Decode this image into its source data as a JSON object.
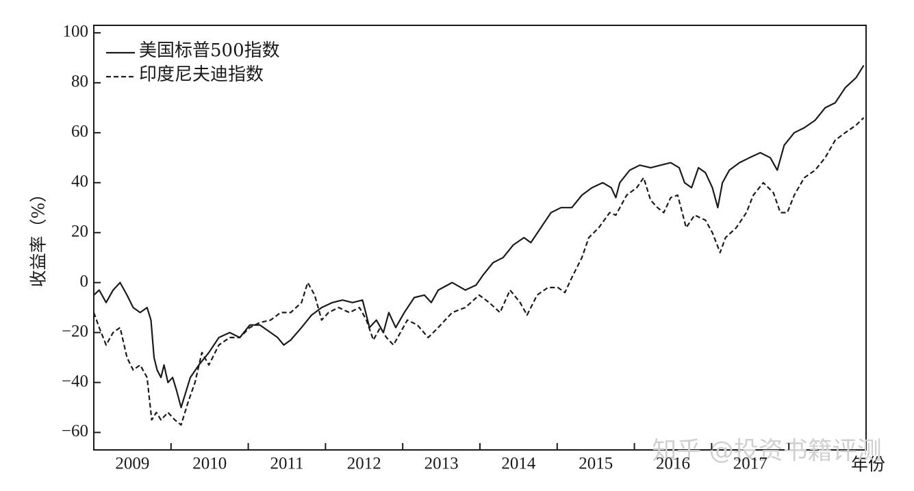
{
  "chart_data": {
    "type": "line",
    "ylabel": "收益率（%）",
    "xlabel": "年份",
    "watermark": "知乎 @投资书籍评测",
    "xlim": [
      2009,
      2019
    ],
    "ylim": [
      -67,
      103
    ],
    "yticks": [
      {
        "value": -60,
        "label": "−60"
      },
      {
        "value": -40,
        "label": "−40"
      },
      {
        "value": -20,
        "label": "−20"
      },
      0,
      20,
      40,
      60,
      80,
      100
    ],
    "xticks": [
      {
        "value": 2009.5,
        "label": "2009"
      },
      {
        "value": 2010.5,
        "label": "2010"
      },
      {
        "value": 2011.5,
        "label": "2011"
      },
      {
        "value": 2012.5,
        "label": "2012"
      },
      {
        "value": 2013.5,
        "label": "2013"
      },
      {
        "value": 2014.5,
        "label": "2014"
      },
      {
        "value": 2015.5,
        "label": "2015"
      },
      {
        "value": 2016.5,
        "label": "2016"
      },
      {
        "value": 2017.5,
        "label": "2017"
      }
    ],
    "xtick_marks": [
      2010,
      2011,
      2012,
      2013,
      2014,
      2015,
      2016,
      2017,
      2018
    ],
    "legend": "upper-left",
    "series": [
      {
        "name": "美国标普500指数",
        "color": "#1a1a1a",
        "style": "solid",
        "x": [
          2009,
          2009.07,
          2009.16,
          2009.25,
          2009.34,
          2009.43,
          2009.51,
          2009.6,
          2009.69,
          2009.74,
          2009.78,
          2009.82,
          2009.87,
          2009.91,
          2009.96,
          2010.02,
          2010.07,
          2010.13,
          2010.18,
          2010.25,
          2010.36,
          2010.49,
          2010.62,
          2010.76,
          2010.89,
          2011.02,
          2011.15,
          2011.29,
          2011.38,
          2011.46,
          2011.55,
          2011.69,
          2011.82,
          2011.95,
          2012.09,
          2012.22,
          2012.35,
          2012.48,
          2012.57,
          2012.66,
          2012.75,
          2012.82,
          2012.91,
          2013.02,
          2013.15,
          2013.28,
          2013.37,
          2013.46,
          2013.64,
          2013.81,
          2013.95,
          2014.04,
          2014.17,
          2014.3,
          2014.43,
          2014.57,
          2014.66,
          2014.79,
          2014.92,
          2015.05,
          2015.19,
          2015.32,
          2015.45,
          2015.59,
          2015.7,
          2015.76,
          2015.81,
          2015.94,
          2016.07,
          2016.21,
          2016.34,
          2016.47,
          2016.58,
          2016.65,
          2016.74,
          2016.83,
          2016.92,
          2017.01,
          2017.08,
          2017.14,
          2017.23,
          2017.36,
          2017.49,
          2017.63,
          2017.76,
          2017.85,
          2017.94,
          2018.07,
          2018.2,
          2018.34,
          2018.47,
          2018.6,
          2018.73,
          2018.87,
          2018.97
        ],
        "values": [
          -5,
          -3,
          -8,
          -3,
          0,
          -5,
          -10,
          -12,
          -10,
          -15,
          -30,
          -35,
          -38,
          -33,
          -40,
          -38,
          -43,
          -50,
          -45,
          -38,
          -33,
          -28,
          -22,
          -20,
          -22,
          -17,
          -17,
          -20,
          -22,
          -25,
          -23,
          -18,
          -13,
          -10,
          -8,
          -7,
          -8,
          -7,
          -18,
          -15,
          -20,
          -12,
          -18,
          -12,
          -6,
          -5,
          -8,
          -3,
          0,
          -3,
          -1,
          3,
          8,
          10,
          15,
          18,
          16,
          22,
          28,
          30,
          30,
          35,
          38,
          40,
          38,
          34,
          40,
          45,
          47,
          46,
          47,
          48,
          46,
          40,
          38,
          46,
          44,
          38,
          30,
          40,
          45,
          48,
          50,
          52,
          50,
          45,
          55,
          60,
          62,
          65,
          70,
          72,
          78,
          82,
          87
        ]
      },
      {
        "name": "印度尼夫迪指数",
        "color": "#1a1a1a",
        "style": "dashed",
        "x": [
          2009,
          2009.07,
          2009.16,
          2009.25,
          2009.34,
          2009.43,
          2009.51,
          2009.6,
          2009.69,
          2009.75,
          2009.81,
          2009.87,
          2009.96,
          2010.05,
          2010.13,
          2010.22,
          2010.31,
          2010.4,
          2010.49,
          2010.62,
          2010.76,
          2010.89,
          2011.02,
          2011.15,
          2011.29,
          2011.42,
          2011.55,
          2011.69,
          2011.77,
          2011.86,
          2011.95,
          2012.04,
          2012.17,
          2012.31,
          2012.44,
          2012.53,
          2012.62,
          2012.71,
          2012.79,
          2012.88,
          2012.97,
          2013.06,
          2013.19,
          2013.33,
          2013.46,
          2013.64,
          2013.81,
          2013.99,
          2014.12,
          2014.26,
          2014.39,
          2014.52,
          2014.61,
          2014.74,
          2014.88,
          2015.01,
          2015.1,
          2015.19,
          2015.32,
          2015.41,
          2015.54,
          2015.68,
          2015.76,
          2015.9,
          2016.03,
          2016.12,
          2016.21,
          2016.3,
          2016.38,
          2016.47,
          2016.56,
          2016.67,
          2016.78,
          2016.92,
          2017.01,
          2017.11,
          2017.18,
          2017.32,
          2017.45,
          2017.54,
          2017.67,
          2017.8,
          2017.89,
          2017.98,
          2018.07,
          2018.2,
          2018.34,
          2018.47,
          2018.6,
          2018.73,
          2018.87,
          2018.97
        ],
        "values": [
          -12,
          -18,
          -25,
          -20,
          -18,
          -30,
          -35,
          -33,
          -38,
          -55,
          -52,
          -55,
          -52,
          -55,
          -57,
          -48,
          -40,
          -28,
          -33,
          -25,
          -22,
          -22,
          -18,
          -16,
          -15,
          -12,
          -12,
          -8,
          0,
          -5,
          -15,
          -12,
          -10,
          -12,
          -10,
          -15,
          -23,
          -18,
          -22,
          -25,
          -20,
          -15,
          -17,
          -22,
          -18,
          -12,
          -10,
          -5,
          -8,
          -12,
          -3,
          -8,
          -13,
          -5,
          -2,
          -2,
          -4,
          2,
          10,
          18,
          22,
          28,
          27,
          35,
          38,
          42,
          33,
          30,
          28,
          34,
          35,
          22,
          27,
          25,
          20,
          12,
          18,
          22,
          28,
          35,
          40,
          36,
          28,
          28,
          35,
          42,
          45,
          50,
          57,
          60,
          63,
          66
        ]
      }
    ]
  }
}
